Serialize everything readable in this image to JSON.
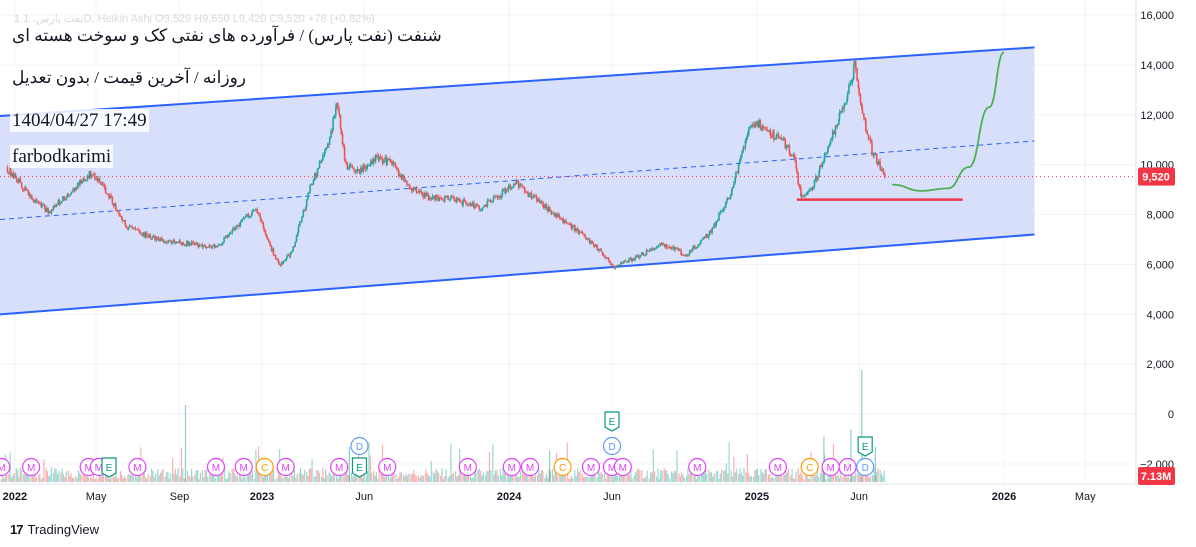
{
  "legend_text": "1 نفت پارس، 1D, Heikin Ashi  O9,529  H9,650  L9,420  C9,520  +78 (+0.82%)",
  "overlay": {
    "title": "شنفت (نفت پارس) / فرآورده های نفتی کک و سوخت هسته ای",
    "subtitle": "روزانه / آخرین قیمت / بدون تعدیل",
    "datetime": "1404/04/27 17:49",
    "author": "farbodkarimi"
  },
  "footer": {
    "brand": "TradingView",
    "logo": "17"
  },
  "colors": {
    "channel_fill": "#d6ddfb",
    "channel_line": "#2962ff",
    "up": "#26a69a",
    "down": "#ef5350",
    "support": "#f23645",
    "projection": "#4caf50",
    "price_label": "#f23645",
    "volume_label": "#f23645",
    "dividend": "#5b9cf6",
    "earnings": "#089981",
    "meeting": "#e040fb",
    "capital": "#ff9800"
  },
  "chart_data": {
    "type": "candlestick",
    "chart_style": "Heikin Ashi",
    "interval": "1D",
    "last_price": 9520,
    "last_price_label": "9,520",
    "volume_label": "7.13M",
    "y_axis": {
      "ticks": [
        16000,
        14000,
        12000,
        10000,
        8000,
        6000,
        4000,
        2000,
        0,
        -2000
      ],
      "tick_labels": [
        "16,000",
        "14,000",
        "12,000",
        "10,000",
        "8,000",
        "6,000",
        "4,000",
        "2,000",
        "0",
        "−2,000"
      ],
      "range": [
        -2800,
        16600
      ]
    },
    "x_axis": {
      "labels": [
        "2022",
        "May",
        "Sep",
        "2023",
        "Jun",
        "2024",
        "Jun",
        "2025",
        "Jun",
        "2026",
        "May"
      ],
      "bold": [
        true,
        false,
        false,
        true,
        false,
        true,
        false,
        true,
        false,
        true,
        false
      ],
      "dates": [
        "2022-01-01",
        "2022-05-01",
        "2022-09-01",
        "2023-01-01",
        "2023-06-01",
        "2024-01-01",
        "2024-06-01",
        "2025-01-01",
        "2025-06-01",
        "2026-01-01",
        "2026-05-01"
      ],
      "range": [
        "2021-12-10",
        "2026-07-15"
      ]
    },
    "price_path": [
      [
        "2021-12-20",
        9900
      ],
      [
        "2022-01-20",
        8900
      ],
      [
        "2022-02-20",
        8100
      ],
      [
        "2022-03-25",
        8900
      ],
      [
        "2022-04-25",
        9700
      ],
      [
        "2022-05-20",
        8800
      ],
      [
        "2022-06-15",
        7500
      ],
      [
        "2022-07-20",
        7100
      ],
      [
        "2022-08-25",
        6900
      ],
      [
        "2022-09-25",
        6800
      ],
      [
        "2022-10-25",
        6700
      ],
      [
        "2022-11-15",
        7200
      ],
      [
        "2022-12-05",
        7800
      ],
      [
        "2022-12-25",
        8200
      ],
      [
        "2023-01-10",
        6900
      ],
      [
        "2023-01-28",
        6000
      ],
      [
        "2023-02-15",
        6500
      ],
      [
        "2023-03-15",
        9200
      ],
      [
        "2023-04-12",
        11000
      ],
      [
        "2023-04-22",
        12600
      ],
      [
        "2023-05-05",
        10000
      ],
      [
        "2023-05-25",
        9700
      ],
      [
        "2023-06-20",
        10300
      ],
      [
        "2023-07-15",
        10000
      ],
      [
        "2023-08-05",
        9100
      ],
      [
        "2023-09-05",
        8700
      ],
      [
        "2023-10-10",
        8600
      ],
      [
        "2023-11-20",
        8300
      ],
      [
        "2023-12-20",
        8800
      ],
      [
        "2024-01-10",
        9300
      ],
      [
        "2024-02-05",
        8700
      ],
      [
        "2024-03-05",
        8100
      ],
      [
        "2024-04-10",
        7400
      ],
      [
        "2024-05-10",
        6700
      ],
      [
        "2024-06-05",
        5900
      ],
      [
        "2024-07-01",
        6200
      ],
      [
        "2024-08-15",
        6800
      ],
      [
        "2024-09-20",
        6400
      ],
      [
        "2024-10-25",
        7300
      ],
      [
        "2024-11-25",
        8900
      ],
      [
        "2024-12-20",
        11400
      ],
      [
        "2025-01-01",
        11700
      ],
      [
        "2025-01-20",
        11300
      ],
      [
        "2025-02-10",
        10900
      ],
      [
        "2025-02-25",
        10300
      ],
      [
        "2025-03-08",
        8700
      ],
      [
        "2025-03-25",
        9100
      ],
      [
        "2025-04-20",
        11000
      ],
      [
        "2025-05-15",
        12800
      ],
      [
        "2025-05-26",
        14000
      ],
      [
        "2025-06-05",
        12200
      ],
      [
        "2025-06-20",
        10600
      ],
      [
        "2025-07-10",
        9520
      ]
    ],
    "channel": {
      "upper": [
        [
          "2021-12-10",
          11950
        ],
        [
          "2026-02-15",
          14700
        ]
      ],
      "lower": [
        [
          "2021-12-10",
          4000
        ],
        [
          "2026-02-15",
          7200
        ]
      ],
      "mid": [
        [
          "2021-12-10",
          7800
        ],
        [
          "2026-02-15",
          10950
        ]
      ]
    },
    "support_line": {
      "value": 8600,
      "from": "2025-03-01",
      "to": "2025-11-01"
    },
    "projection": [
      [
        "2025-07-20",
        9200
      ],
      [
        "2025-09-01",
        8950
      ],
      [
        "2025-10-10",
        9050
      ],
      [
        "2025-11-10",
        9900
      ],
      [
        "2025-12-10",
        12300
      ],
      [
        "2026-01-01",
        14500
      ]
    ],
    "volume_spikes": [
      [
        "2022-09-10",
        2200
      ],
      [
        "2023-05-10",
        1000
      ],
      [
        "2024-03-01",
        900
      ],
      [
        "2025-04-10",
        1300
      ],
      [
        "2025-05-20",
        1500
      ],
      [
        "2025-06-05",
        3200
      ],
      [
        "2025-06-25",
        1000
      ]
    ],
    "events": [
      {
        "type": "M",
        "date": "2021-12-12"
      },
      {
        "type": "M",
        "date": "2022-01-25"
      },
      {
        "type": "M",
        "date": "2022-04-20"
      },
      {
        "type": "M",
        "date": "2022-05-05"
      },
      {
        "type": "E",
        "date": "2022-05-20"
      },
      {
        "type": "M",
        "date": "2022-07-01"
      },
      {
        "type": "M",
        "date": "2022-10-25"
      },
      {
        "type": "M",
        "date": "2022-12-05"
      },
      {
        "type": "C",
        "date": "2023-01-05"
      },
      {
        "type": "M",
        "date": "2023-02-05"
      },
      {
        "type": "M",
        "date": "2023-04-25"
      },
      {
        "type": "D",
        "date": "2023-05-25",
        "row": 2
      },
      {
        "type": "E",
        "date": "2023-05-25"
      },
      {
        "type": "M",
        "date": "2023-07-05"
      },
      {
        "type": "M",
        "date": "2023-11-01"
      },
      {
        "type": "M",
        "date": "2024-01-05"
      },
      {
        "type": "M",
        "date": "2024-02-01"
      },
      {
        "type": "C",
        "date": "2024-03-20"
      },
      {
        "type": "M",
        "date": "2024-05-01"
      },
      {
        "type": "E",
        "date": "2024-06-01",
        "row": 3
      },
      {
        "type": "D",
        "date": "2024-06-01",
        "row": 2
      },
      {
        "type": "M",
        "date": "2024-06-01"
      },
      {
        "type": "M",
        "date": "2024-06-17"
      },
      {
        "type": "M",
        "date": "2024-10-05"
      },
      {
        "type": "M",
        "date": "2025-02-01"
      },
      {
        "type": "C",
        "date": "2025-03-20"
      },
      {
        "type": "M",
        "date": "2025-04-20"
      },
      {
        "type": "M",
        "date": "2025-05-15"
      },
      {
        "type": "E",
        "date": "2025-06-10",
        "row": 2
      },
      {
        "type": "D",
        "date": "2025-06-10"
      }
    ]
  }
}
